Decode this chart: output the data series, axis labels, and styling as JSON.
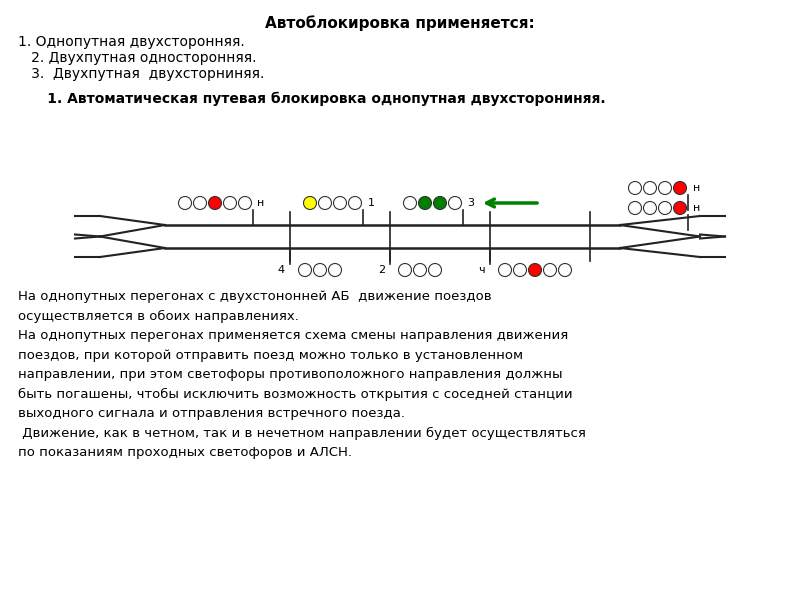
{
  "title": "Автоблокировка применяется:",
  "list_items": [
    "1. Однопутная двухсторонняя.",
    "   2. Двухпутная односторонняя.",
    "   3.  Двухпутная  двухсторниняя."
  ],
  "subtitle": "      1. Автоматическая путевая блокировка однопутная двухсторониняя.",
  "body_text": [
    "На однопутных перегонах с двухстононней АБ  движение поездов",
    "осуществляется в обоих направлениях.",
    "На однопутных перегонах применяется схема смены направления движения",
    "поездов, при которой отправить поезд можно только в установленном",
    "направлении, при этом светофоры противоположного направления должны",
    "быть погашены, чтобы исключить возможность открытия с соседней станции",
    "выходного сигнала и отправления встречного поезда.",
    " Движение, как в четном, так и в нечетном направлении будет осуществляться",
    "по показаниям проходных светофоров и АЛСН."
  ],
  "bg_color": "#ffffff",
  "text_color": "#000000",
  "track_color": "#222222",
  "signal_colors_H": [
    "white",
    "white",
    "red",
    "white",
    "white"
  ],
  "signal_colors_1": [
    "yellow",
    "white",
    "white",
    "white"
  ],
  "signal_colors_3": [
    "white",
    "green",
    "green",
    "white"
  ],
  "signal_colors_rH_top": [
    "white",
    "white",
    "white",
    "red"
  ],
  "signal_colors_rH_bot": [
    "white",
    "white",
    "white",
    "red"
  ],
  "signal_colors_4": [
    "white",
    "white",
    "white"
  ],
  "signal_colors_2": [
    "white",
    "white",
    "white"
  ],
  "signal_colors_ch": [
    "white",
    "white",
    "red",
    "white",
    "white"
  ]
}
